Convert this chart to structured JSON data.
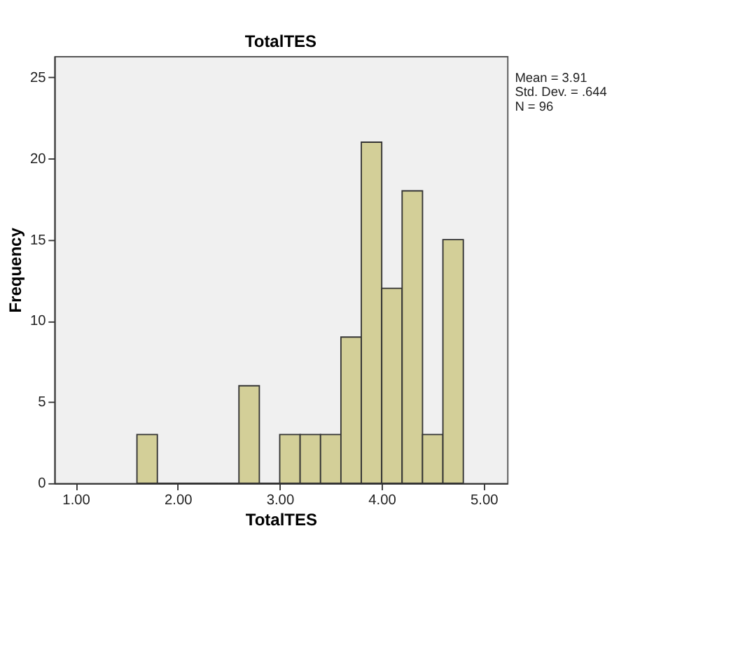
{
  "chart_data": {
    "type": "histogram",
    "title": "TotalTES",
    "xlabel": "TotalTES",
    "ylabel": "Frequency",
    "bins": [
      1.6,
      1.8,
      2.0,
      2.2,
      2.4,
      2.6,
      2.8,
      3.0,
      3.2,
      3.4,
      3.6,
      3.8,
      4.0,
      4.2,
      4.4,
      4.6,
      4.8
    ],
    "values": [
      3,
      0,
      0,
      0,
      0,
      6,
      0,
      3,
      3,
      3,
      9,
      21,
      12,
      18,
      3,
      15
    ],
    "color": "#d3cf98",
    "xlim": [
      0.79,
      5.23
    ],
    "xticks": [
      {
        "value": 1,
        "label": "1.00"
      },
      {
        "value": 2,
        "label": "2.00"
      },
      {
        "value": 3,
        "label": "3.00"
      },
      {
        "value": 4,
        "label": "4.00"
      },
      {
        "value": 5,
        "label": "5.00"
      }
    ],
    "ylim": [
      0,
      26.3
    ],
    "yticks": [
      0,
      5,
      10,
      15,
      20,
      25
    ],
    "annotations": [
      "Mean = 3.91",
      "Std. Dev. = .644",
      "N = 96"
    ],
    "grid": false
  }
}
